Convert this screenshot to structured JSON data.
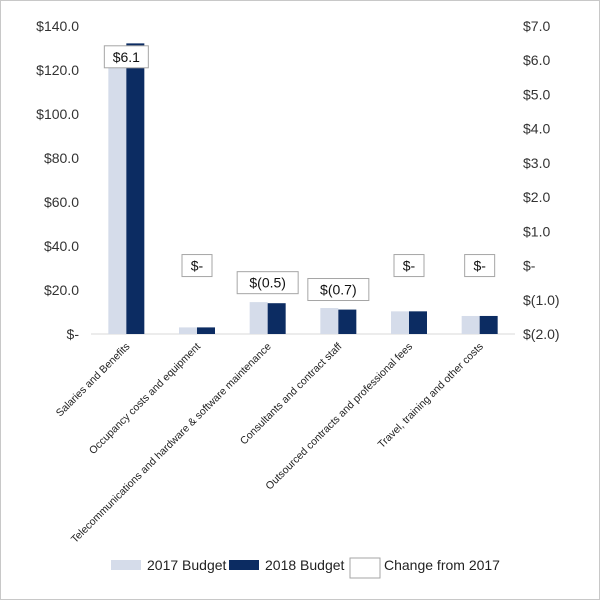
{
  "chart_data": {
    "type": "bar",
    "categories": [
      "Salaries and Benefits",
      "Occupancy costs and equipment",
      "Telecommunications and hardware & software maintenance",
      "Consultants and contract staff",
      "Outsourced contracts and professional fees",
      "Travel, training and other costs"
    ],
    "series": [
      {
        "name": "2017 Budget",
        "values": [
          126.0,
          3.0,
          14.5,
          11.8,
          10.3,
          8.2
        ],
        "color": "#d5dcea",
        "axis": "left"
      },
      {
        "name": "2018 Budget",
        "values": [
          132.1,
          3.0,
          14.0,
          11.1,
          10.3,
          8.2
        ],
        "color": "#0c2c62",
        "axis": "left"
      },
      {
        "name": "Change from 2017",
        "values": [
          6.1,
          0.0,
          -0.5,
          -0.7,
          0.0,
          0.0
        ],
        "color": "#ffffff",
        "axis": "right"
      }
    ],
    "change_labels": [
      "$6.1",
      "$-",
      "$(0.5)",
      "$(0.7)",
      "$-",
      "$-"
    ],
    "y_left": {
      "lim": [
        0,
        140
      ],
      "ticks": [
        0,
        20,
        40,
        60,
        80,
        100,
        120,
        140
      ],
      "tick_labels": [
        "$-",
        "$20.0",
        "$40.0",
        "$60.0",
        "$80.0",
        "$100.0",
        "$120.0",
        "$140.0"
      ]
    },
    "y_right": {
      "lim": [
        -2,
        7
      ],
      "ticks": [
        -2,
        -1,
        0,
        1,
        2,
        3,
        4,
        5,
        6,
        7
      ],
      "tick_labels": [
        "$(2.0)",
        "$(1.0)",
        "$-",
        "$1.0",
        "$2.0",
        "$3.0",
        "$4.0",
        "$5.0",
        "$6.0",
        "$7.0"
      ]
    },
    "grid": false,
    "legend_position": "bottom"
  }
}
